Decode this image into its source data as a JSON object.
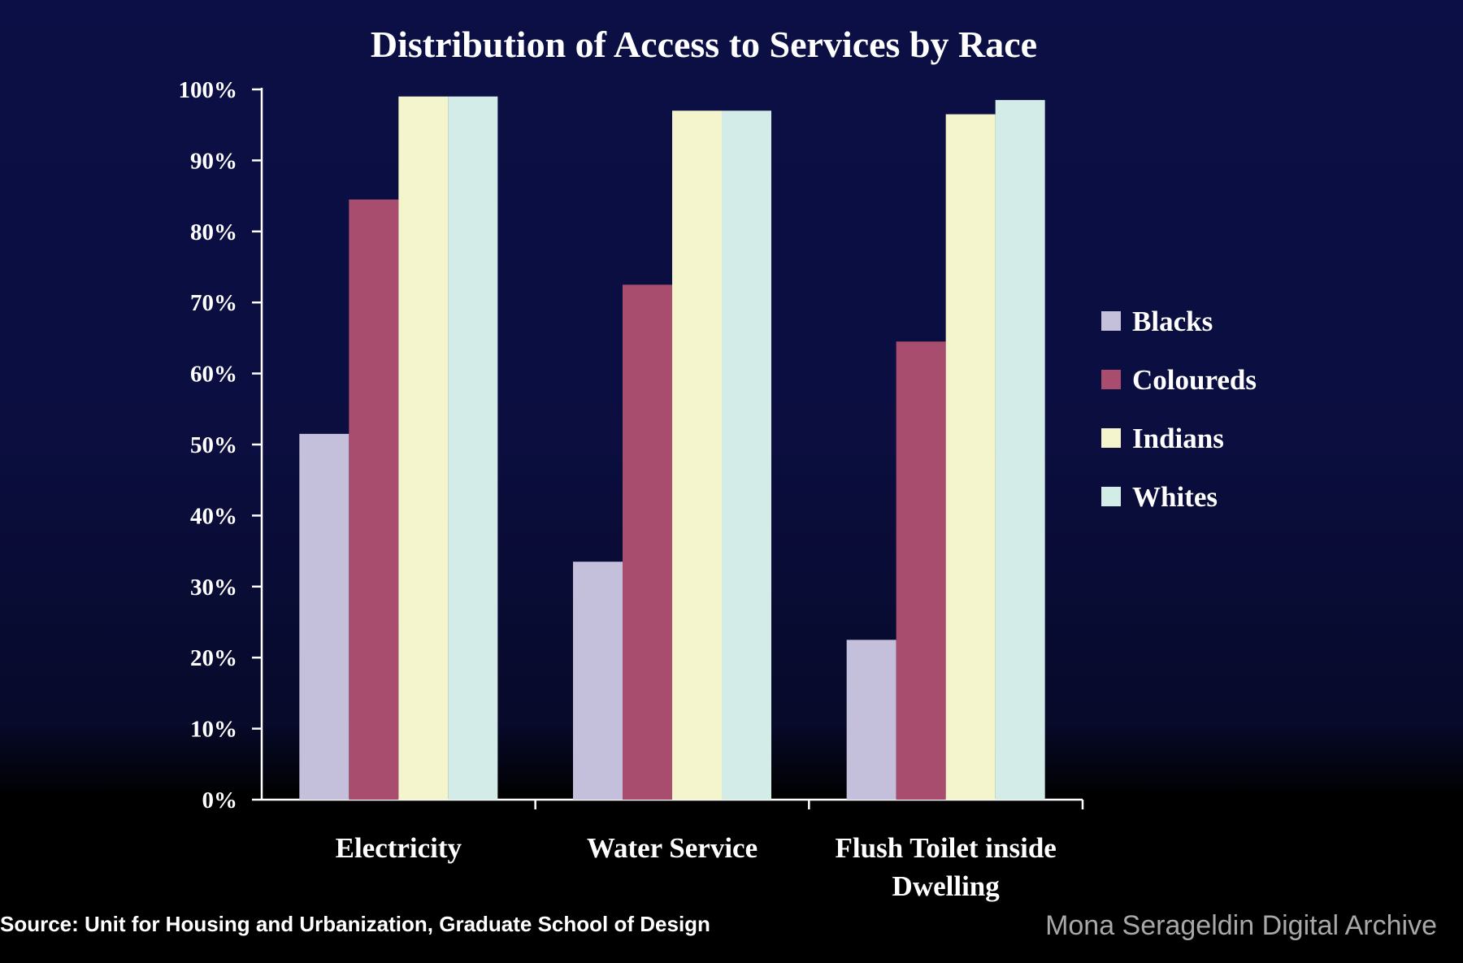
{
  "chart_data": {
    "type": "bar",
    "title": "Distribution of Access to Services by Race",
    "categories": [
      "Electricity",
      "Water Service",
      "Flush Toilet inside Dwelling"
    ],
    "category_lines": [
      [
        "Electricity"
      ],
      [
        "Water Service"
      ],
      [
        "Flush Toilet inside",
        "Dwelling"
      ]
    ],
    "series": [
      {
        "name": "Blacks",
        "color": "#c4c0dc",
        "values": [
          51.5,
          33.5,
          22.5
        ]
      },
      {
        "name": "Coloureds",
        "color": "#a84d6e",
        "values": [
          84.5,
          72.5,
          64.5
        ]
      },
      {
        "name": "Indians",
        "color": "#f4f5cc",
        "values": [
          99,
          97,
          96.5
        ]
      },
      {
        "name": "Whites",
        "color": "#d4ece8",
        "values": [
          99,
          97,
          98.5
        ]
      }
    ],
    "yticks": [
      "0%",
      "10%",
      "20%",
      "30%",
      "40%",
      "50%",
      "60%",
      "70%",
      "80%",
      "90%",
      "100%"
    ],
    "ylim": [
      0,
      100
    ],
    "xlabel": "",
    "ylabel": "",
    "legend_position": "right",
    "grid": false
  },
  "footer": {
    "source": "Source: Unit for Housing and Urbanization, Graduate School of Design",
    "watermark": "Mona Serageldin Digital Archive"
  }
}
